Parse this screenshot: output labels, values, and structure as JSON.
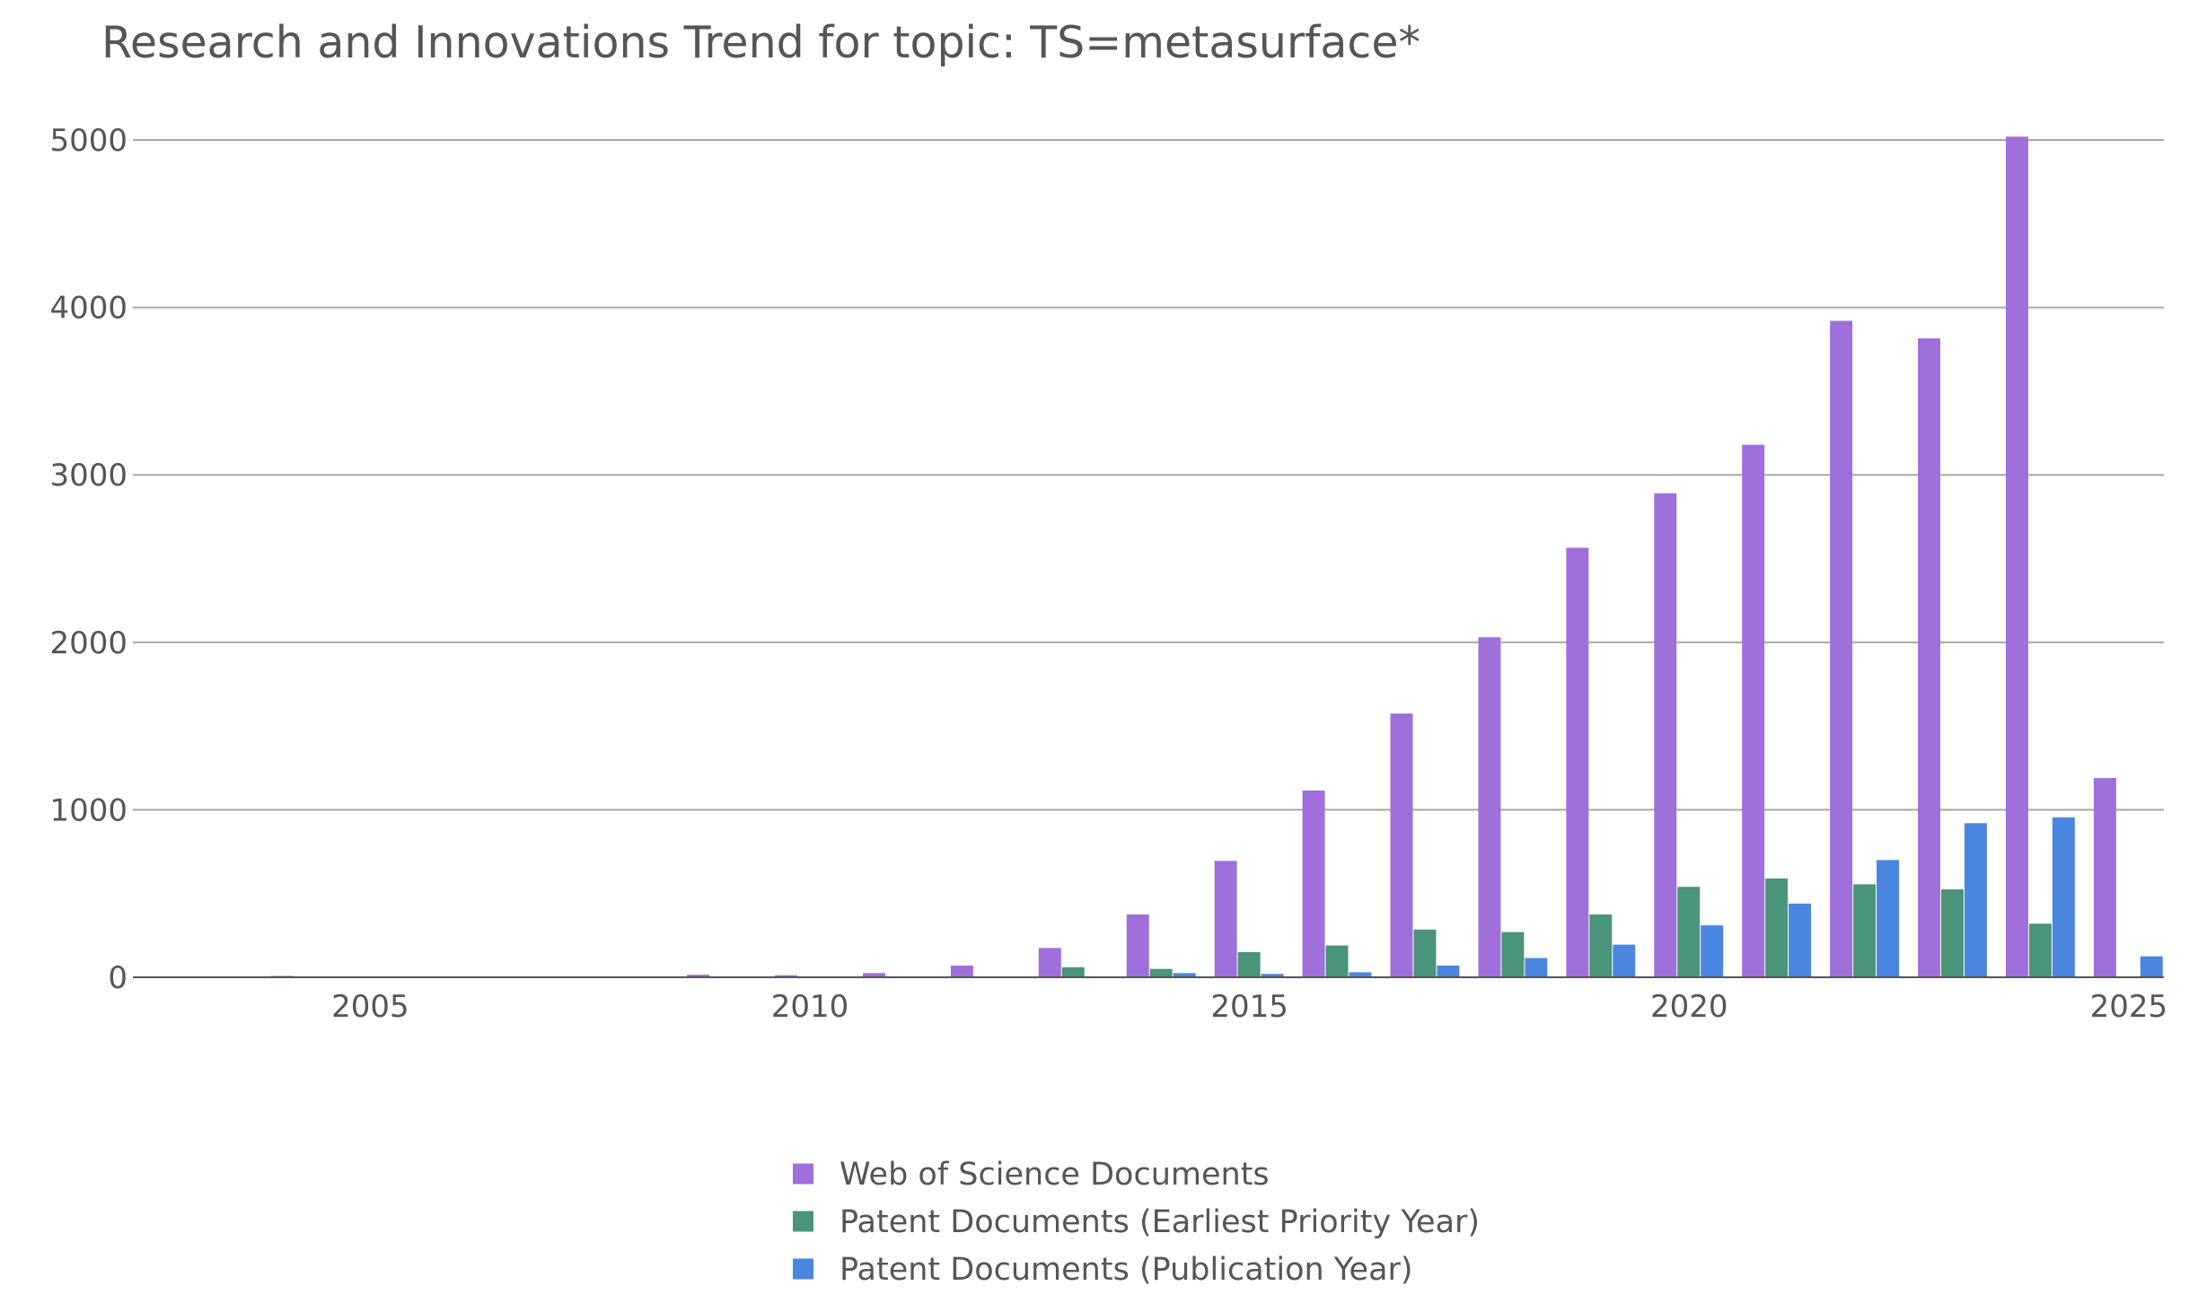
{
  "chart_data": {
    "type": "bar",
    "title": "Research and Innovations Trend for topic: TS=metasurface*",
    "xlabel": "",
    "ylabel": "",
    "x": [
      2004,
      2005,
      2006,
      2007,
      2008,
      2009,
      2010,
      2011,
      2012,
      2013,
      2014,
      2015,
      2016,
      2017,
      2018,
      2019,
      2020,
      2021,
      2022,
      2023,
      2024,
      2025
    ],
    "x_ticks": [
      "2005",
      "2010",
      "2015",
      "2020",
      "2025"
    ],
    "x_tick_values": [
      2005,
      2010,
      2015,
      2020,
      2025
    ],
    "xlim": [
      2002.3,
      2025.4
    ],
    "y_ticks": [
      "0",
      "1000",
      "2000",
      "3000",
      "4000",
      "5000"
    ],
    "y_tick_values": [
      0,
      1000,
      2000,
      3000,
      4000,
      5000
    ],
    "ylim": [
      0,
      5300
    ],
    "grid": true,
    "legend_position": "bottom-center",
    "series": [
      {
        "name": "Web of Science Documents",
        "color": "#9f6fdb",
        "values": [
          2,
          1,
          1,
          2,
          5,
          15,
          12,
          25,
          70,
          175,
          375,
          695,
          1115,
          1575,
          2030,
          2565,
          2890,
          3180,
          3920,
          3815,
          5020,
          1190
        ]
      },
      {
        "name": "Patent Documents (Earliest Priority Year)",
        "color": "#4a9479",
        "values": [
          8,
          2,
          3,
          3,
          2,
          2,
          2,
          3,
          4,
          60,
          50,
          150,
          190,
          285,
          270,
          375,
          540,
          590,
          555,
          525,
          320,
          0
        ]
      },
      {
        "name": "Patent Documents (Publication Year)",
        "color": "#4a86e0",
        "values": [
          1,
          1,
          1,
          1,
          1,
          2,
          2,
          2,
          2,
          3,
          25,
          20,
          30,
          70,
          115,
          195,
          310,
          440,
          700,
          920,
          955,
          125
        ]
      }
    ]
  }
}
